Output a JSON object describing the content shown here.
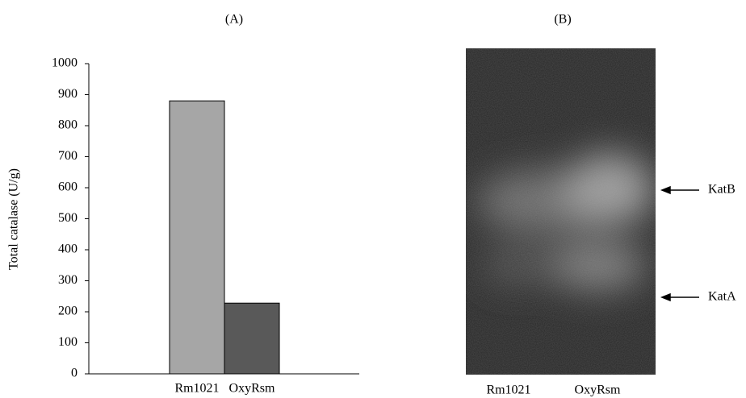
{
  "chart_data": {
    "type": "bar",
    "title": "(A)",
    "y_label": "Total catalase (U/g)",
    "categories": [
      "Rm1021",
      "OxyRsm"
    ],
    "values": [
      880,
      228
    ],
    "colors": [
      "#a6a6a6",
      "#595959"
    ],
    "ylim": [
      0,
      1000
    ],
    "yticks": [
      0,
      100,
      200,
      300,
      400,
      500,
      600,
      700,
      800,
      900,
      1000
    ],
    "grid": false
  },
  "panel_b": {
    "title": "(B)",
    "lanes": [
      "Rm1021",
      "OxyRsm"
    ],
    "bands": [
      "KatB",
      "KatA"
    ]
  }
}
